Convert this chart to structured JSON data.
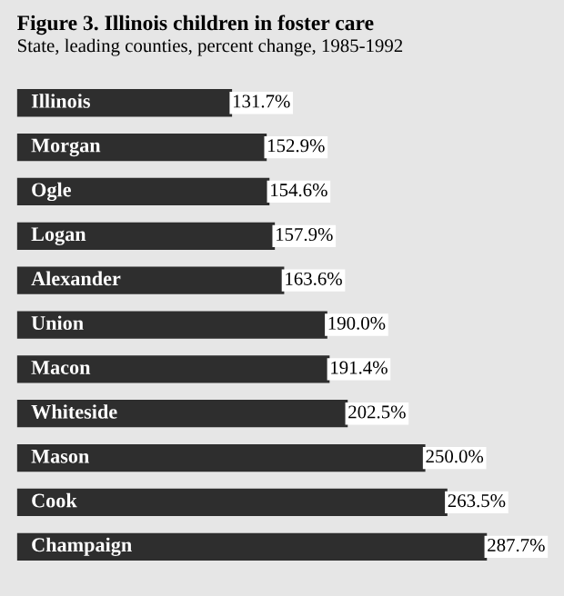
{
  "chart_data": {
    "type": "bar",
    "orientation": "horizontal",
    "title": "Figure 3. Illinois children in foster care",
    "subtitle": "State, leading counties, percent change, 1985-1992",
    "categories": [
      "Illinois",
      "Morgan",
      "Ogle",
      "Logan",
      "Alexander",
      "Union",
      "Macon",
      "Whiteside",
      "Mason",
      "Cook",
      "Champaign"
    ],
    "values": [
      131.7,
      152.9,
      154.6,
      157.9,
      163.6,
      190.0,
      191.4,
      202.5,
      250.0,
      263.5,
      287.7
    ],
    "value_labels": [
      "131.7%",
      "152.9%",
      "154.6%",
      "157.9%",
      "163.6%",
      "190.0%",
      "191.4%",
      "202.5%",
      "250.0%",
      "263.5%",
      "287.7%"
    ],
    "color": "#2e2e2e"
  }
}
